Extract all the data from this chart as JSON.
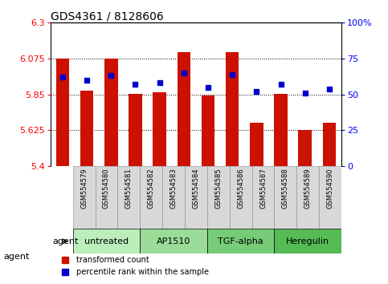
{
  "title": "GDS4361 / 8128606",
  "samples": [
    "GSM554579",
    "GSM554580",
    "GSM554581",
    "GSM554582",
    "GSM554583",
    "GSM554584",
    "GSM554585",
    "GSM554586",
    "GSM554587",
    "GSM554588",
    "GSM554589",
    "GSM554590"
  ],
  "red_values": [
    6.075,
    5.875,
    6.075,
    5.855,
    5.865,
    6.115,
    5.845,
    6.115,
    5.675,
    5.855,
    5.625,
    5.675
  ],
  "blue_values": [
    62,
    60,
    63,
    57,
    58,
    65,
    55,
    64,
    52,
    57,
    51,
    54
  ],
  "ylim_left": [
    5.4,
    6.3
  ],
  "yticks_left": [
    5.4,
    5.625,
    5.85,
    6.075,
    6.3
  ],
  "ytick_labels_left": [
    "5.4",
    "5.625",
    "5.85",
    "6.075",
    "6.3"
  ],
  "yticks_right": [
    0,
    25,
    50,
    75,
    100
  ],
  "ytick_labels_right": [
    "0",
    "25",
    "50",
    "75",
    "100%"
  ],
  "hlines": [
    5.625,
    5.85,
    6.075
  ],
  "groups": [
    {
      "label": "untreated",
      "start": 0,
      "end": 3,
      "color": "#bbeebb"
    },
    {
      "label": "AP1510",
      "start": 3,
      "end": 6,
      "color": "#99dd99"
    },
    {
      "label": "TGF-alpha",
      "start": 6,
      "end": 9,
      "color": "#77cc77"
    },
    {
      "label": "Heregulin",
      "start": 9,
      "end": 12,
      "color": "#55bb55"
    }
  ],
  "bar_color": "#cc1100",
  "dot_color": "#0000cc",
  "bar_bottom": 5.4,
  "tick_fontsize": 8,
  "sample_fontsize": 6,
  "group_fontsize": 8
}
